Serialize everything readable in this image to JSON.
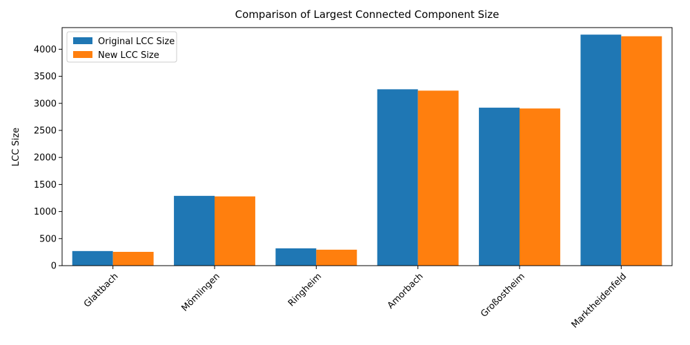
{
  "chart_data": {
    "type": "bar",
    "title": "Comparison of Largest Connected Component Size",
    "xlabel": "",
    "ylabel": "LCC Size",
    "categories": [
      "Glattbach",
      "Mömlingen",
      "Ringheim",
      "Amorbach",
      "Großostheim",
      "Marktheidenfeld"
    ],
    "series": [
      {
        "name": "Original LCC Size",
        "color": "#1f77b4",
        "values": [
          270,
          1290,
          320,
          3260,
          2920,
          4270
        ]
      },
      {
        "name": "New LCC Size",
        "color": "#ff7f0e",
        "values": [
          255,
          1280,
          295,
          3235,
          2905,
          4240
        ]
      }
    ],
    "ylim": [
      0,
      4400
    ],
    "yticks": [
      0,
      500,
      1000,
      1500,
      2000,
      2500,
      3000,
      3500,
      4000
    ],
    "grid": false,
    "legend_position": "top-left"
  }
}
